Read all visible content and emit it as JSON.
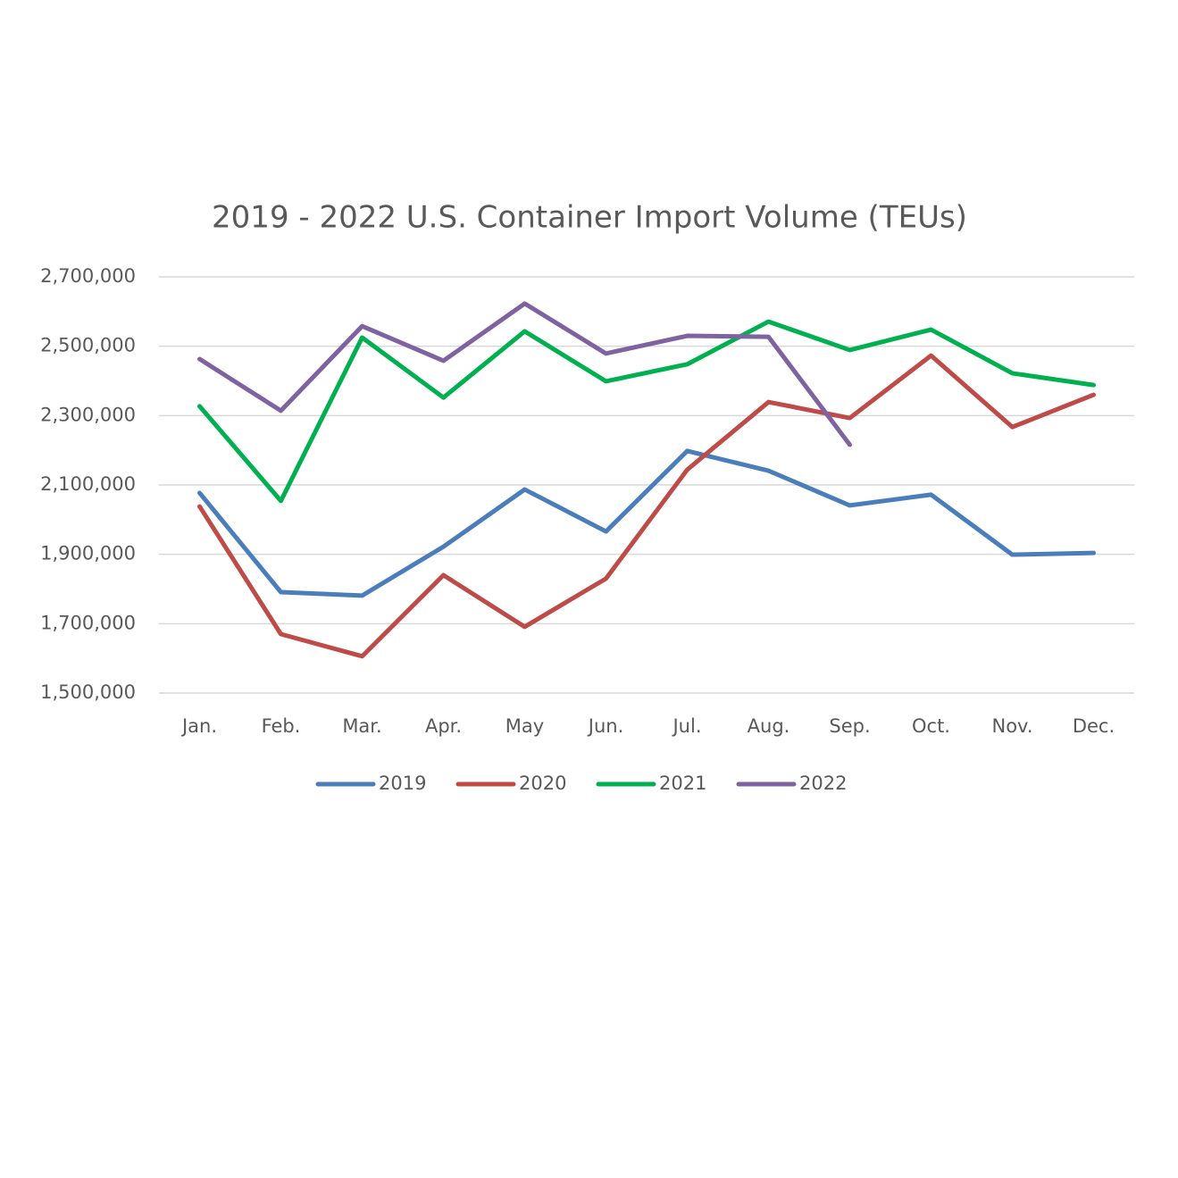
{
  "chart_data": {
    "type": "line",
    "title": "2019 - 2022 U.S. Container Import Volume (TEUs)",
    "categories": [
      "Jan.",
      "Feb.",
      "Mar.",
      "Apr.",
      "May",
      "Jun.",
      "Jul.",
      "Aug.",
      "Sep.",
      "Oct.",
      "Nov.",
      "Dec."
    ],
    "series": [
      {
        "name": "2019",
        "color": "#4a7ebb",
        "values": [
          2077000,
          1791000,
          1781000,
          1922000,
          2087000,
          1966000,
          2198000,
          2141000,
          2041000,
          2072000,
          1899000,
          1904000
        ]
      },
      {
        "name": "2020",
        "color": "#be4b48",
        "values": [
          2038000,
          1670000,
          1606000,
          1840000,
          1691000,
          1830000,
          2144000,
          2339000,
          2293000,
          2473000,
          2267000,
          2360000
        ]
      },
      {
        "name": "2021",
        "color": "#00b050",
        "values": [
          2327000,
          2054000,
          2525000,
          2352000,
          2543000,
          2399000,
          2448000,
          2571000,
          2489000,
          2548000,
          2422000,
          2388000
        ]
      },
      {
        "name": "2022",
        "color": "#7f62a0",
        "values": [
          2463000,
          2314000,
          2558000,
          2458000,
          2623000,
          2479000,
          2530000,
          2527000,
          2216000,
          null,
          null,
          null
        ]
      }
    ],
    "ylim": [
      1500000,
      2700000
    ],
    "yticks": [
      {
        "value": 1500000,
        "label": "1,500,000"
      },
      {
        "value": 1700000,
        "label": "1,700,000"
      },
      {
        "value": 1900000,
        "label": "1,900,000"
      },
      {
        "value": 2100000,
        "label": "2,100,000"
      },
      {
        "value": 2300000,
        "label": "2,300,000"
      },
      {
        "value": 2500000,
        "label": "2,500,000"
      },
      {
        "value": 2700000,
        "label": "2,700,000"
      }
    ],
    "grid": true,
    "legend": "bottom"
  }
}
